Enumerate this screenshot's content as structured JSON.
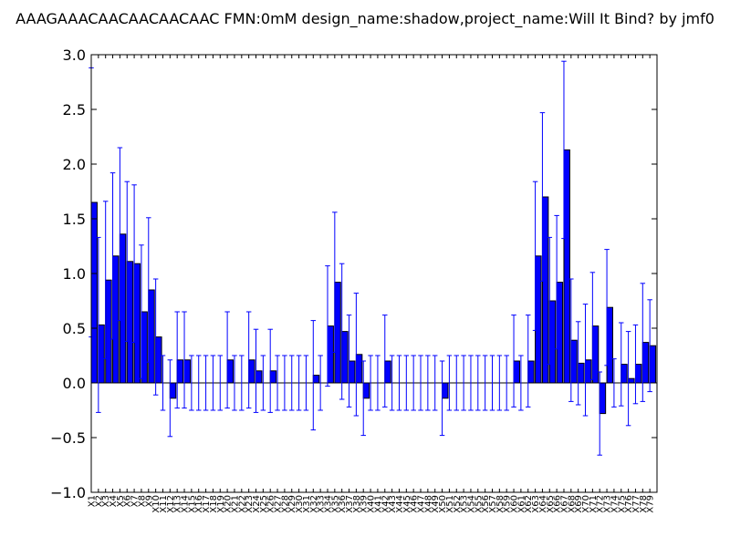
{
  "chart_data": {
    "type": "bar",
    "title": "AAAGAAACAACAACAACAAC  FMN:0mM  design_name:shadow,project_name:Will It Bind? by jmf0",
    "xlabel": "",
    "ylabel": "",
    "ylim": [
      -1.0,
      3.0
    ],
    "yticks": [
      -1.0,
      -0.5,
      0.0,
      0.5,
      1.0,
      1.5,
      2.0,
      2.5,
      3.0
    ],
    "ytick_labels": [
      "−1.0",
      "−0.5",
      "0.0",
      "0.5",
      "1.0",
      "1.5",
      "2.0",
      "2.5",
      "3.0"
    ],
    "bar_color": "#0000ff",
    "edge_color": "#000000",
    "error_color": "#0000ff",
    "grid": false,
    "categories": [
      "X1",
      "X2",
      "X3",
      "X4",
      "X5",
      "X6",
      "X7",
      "X8",
      "X9",
      "X10",
      "X11",
      "X12",
      "X13",
      "X14",
      "X15",
      "X16",
      "X17",
      "X18",
      "X19",
      "X20",
      "X21",
      "X22",
      "X23",
      "X24",
      "X25",
      "X26",
      "X27",
      "X28",
      "X29",
      "X30",
      "X31",
      "X32",
      "X33",
      "X34",
      "X35",
      "X36",
      "X37",
      "X38",
      "X39",
      "X40",
      "X41",
      "X42",
      "X43",
      "X44",
      "X45",
      "X46",
      "X47",
      "X48",
      "X49",
      "X50",
      "X51",
      "X52",
      "X53",
      "X54",
      "X55",
      "X56",
      "X57",
      "X58",
      "X59",
      "X60",
      "X61",
      "X62",
      "X63",
      "X64",
      "X65",
      "X66",
      "X67",
      "X68",
      "X69",
      "X70",
      "X71",
      "X72",
      "X73",
      "X74",
      "X75",
      "X76",
      "X77",
      "X78",
      "X79"
    ],
    "values": [
      1.65,
      0.53,
      0.94,
      1.16,
      1.36,
      1.11,
      1.09,
      0.65,
      0.85,
      0.42,
      0.0,
      -0.14,
      0.21,
      0.21,
      0.0,
      0.0,
      0.0,
      0.0,
      0.0,
      0.21,
      0.0,
      0.0,
      0.21,
      0.11,
      0.0,
      0.11,
      0.0,
      0.0,
      0.0,
      0.0,
      0.0,
      0.07,
      0.0,
      0.52,
      0.92,
      0.47,
      0.2,
      0.26,
      -0.14,
      0.0,
      0.0,
      0.2,
      0.0,
      0.0,
      0.0,
      0.0,
      0.0,
      0.0,
      0.0,
      -0.14,
      0.0,
      0.0,
      0.0,
      0.0,
      0.0,
      0.0,
      0.0,
      0.0,
      0.0,
      0.2,
      0.0,
      0.2,
      1.16,
      1.7,
      0.75,
      0.92,
      2.13,
      0.39,
      0.18,
      0.21,
      0.52,
      -0.28,
      0.69,
      0.0,
      0.17,
      0.04,
      0.17,
      0.37,
      0.34
    ],
    "errors": [
      1.23,
      0.8,
      0.72,
      0.76,
      0.79,
      0.73,
      0.72,
      0.61,
      0.66,
      0.53,
      0.25,
      0.35,
      0.44,
      0.44,
      0.25,
      0.25,
      0.25,
      0.25,
      0.25,
      0.44,
      0.25,
      0.25,
      0.44,
      0.38,
      0.25,
      0.38,
      0.25,
      0.25,
      0.25,
      0.25,
      0.25,
      0.5,
      0.25,
      0.55,
      0.64,
      0.62,
      0.42,
      0.56,
      0.34,
      0.25,
      0.25,
      0.42,
      0.25,
      0.25,
      0.25,
      0.25,
      0.25,
      0.25,
      0.25,
      0.34,
      0.25,
      0.25,
      0.25,
      0.25,
      0.25,
      0.25,
      0.25,
      0.25,
      0.25,
      0.42,
      0.25,
      0.42,
      0.68,
      0.77,
      0.58,
      0.61,
      0.81,
      0.56,
      0.38,
      0.51,
      0.49,
      0.38,
      0.53,
      0.22,
      0.38,
      0.43,
      0.36,
      0.54,
      0.42
    ]
  }
}
